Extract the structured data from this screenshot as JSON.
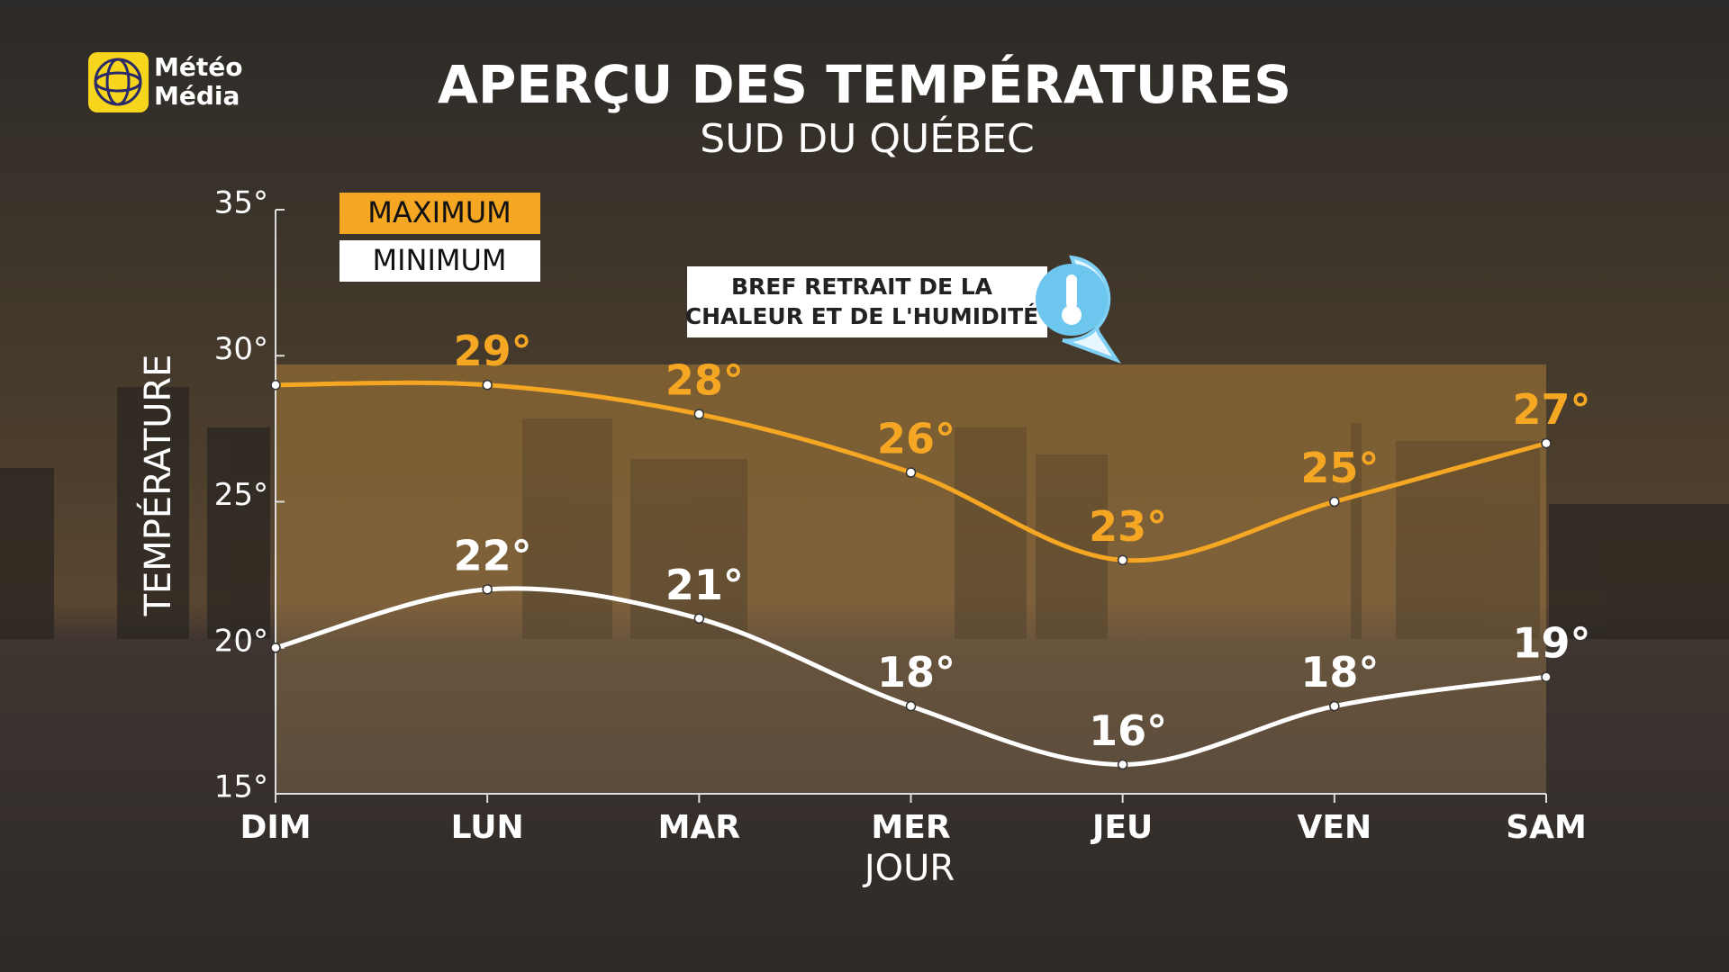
{
  "logo": [
    "Météo",
    "Média"
  ],
  "chart_data": {
    "type": "line",
    "title": "APERÇU DES TEMPÉRATURES",
    "subtitle": "SUD DU QUÉBEC",
    "x_label": "JOUR",
    "y_label": "TEMPÉRATURE",
    "annotation": [
      "BREF RETRAIT DE LA",
      "CHALEUR ET DE L'HUMIDITÉ"
    ],
    "categories": [
      "DIM",
      "LUN",
      "MAR",
      "MER",
      "JEU",
      "VEN",
      "SAM"
    ],
    "series": [
      {
        "name": "MAXIMUM",
        "color": "#f5a623",
        "values": [
          29,
          29,
          28,
          26,
          23,
          25,
          27
        ],
        "value_labels": [
          null,
          "29°",
          "28°",
          "26°",
          "23°",
          "25°",
          "27°"
        ]
      },
      {
        "name": "MINIMUM",
        "color": "#ffffff",
        "values": [
          20,
          22,
          21,
          18,
          16,
          18,
          19
        ],
        "value_labels": [
          null,
          "22°",
          "21°",
          "18°",
          "16°",
          "18°",
          "19°"
        ]
      }
    ],
    "ylim": [
      15,
      35
    ],
    "yticks": [
      {
        "value": 15,
        "label": "15°"
      },
      {
        "value": 20,
        "label": "20°"
      },
      {
        "value": 25,
        "label": "25°"
      },
      {
        "value": 30,
        "label": "30°"
      },
      {
        "value": 35,
        "label": "35°"
      }
    ],
    "legend": "top-left"
  }
}
